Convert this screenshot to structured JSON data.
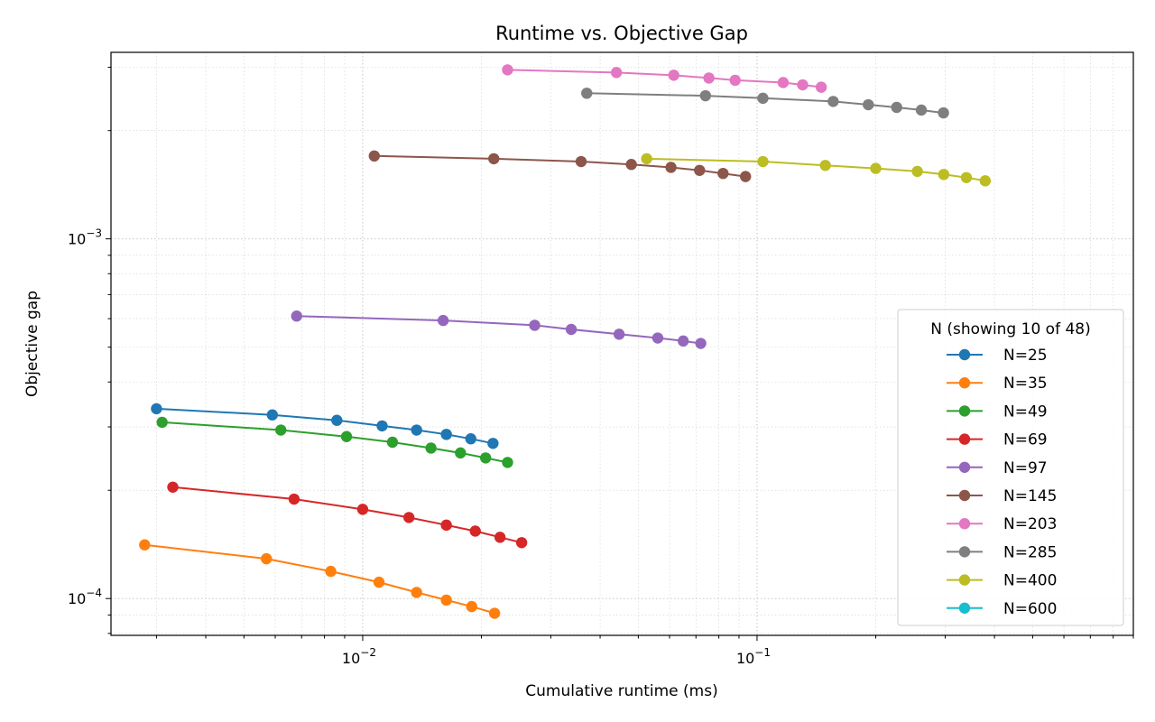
{
  "chart_data": {
    "type": "line",
    "title": "Runtime vs. Objective Gap",
    "xlabel": "Cumulative runtime (ms)",
    "ylabel": "Objective gap",
    "xscale": "log",
    "yscale": "log",
    "xlim": [
      0.0023,
      0.9
    ],
    "ylim": [
      7.9e-05,
      0.0033
    ],
    "x_tick_labels": [
      "10^-2",
      "10^-1"
    ],
    "y_tick_labels": [
      "10^-4",
      "10^-3"
    ],
    "grid": "both (major and minor), dotted",
    "legend": {
      "title": "N (showing 10 of 48)",
      "placement": "lower-right",
      "entries": [
        "N=25",
        "N=35",
        "N=49",
        "N=69",
        "N=97",
        "N=145",
        "N=203",
        "N=285",
        "N=400",
        "N=600"
      ]
    },
    "series": [
      {
        "name": "N=25",
        "color": "#1f77b4",
        "x": [
          0.003,
          0.0059,
          0.0086,
          0.0112,
          0.0137,
          0.0163,
          0.0188,
          0.0214
        ],
        "y": [
          0.000337,
          0.000324,
          0.000313,
          0.000302,
          0.000294,
          0.000286,
          0.000278,
          0.00027
        ]
      },
      {
        "name": "N=35",
        "color": "#ff7f0e",
        "x": [
          0.0028,
          0.0057,
          0.0083,
          0.011,
          0.0137,
          0.0163,
          0.0189,
          0.0216
        ],
        "y": [
          0.000141,
          0.000129,
          0.000119,
          0.000111,
          0.000104,
          9.9e-05,
          9.5e-05,
          9.1e-05
        ]
      },
      {
        "name": "N=49",
        "color": "#2ca02c",
        "x": [
          0.0031,
          0.0062,
          0.0091,
          0.0119,
          0.0149,
          0.0177,
          0.0205,
          0.0233
        ],
        "y": [
          0.000309,
          0.000294,
          0.000282,
          0.000272,
          0.000262,
          0.000254,
          0.000246,
          0.000239
        ]
      },
      {
        "name": "N=69",
        "color": "#d62728",
        "x": [
          0.0033,
          0.0067,
          0.01,
          0.0131,
          0.0163,
          0.0193,
          0.0223,
          0.0253
        ],
        "y": [
          0.000204,
          0.000189,
          0.000177,
          0.000168,
          0.00016,
          0.000154,
          0.000148,
          0.000143
        ]
      },
      {
        "name": "N=97",
        "color": "#9467bd",
        "x": [
          0.0068,
          0.016,
          0.0273,
          0.0338,
          0.0447,
          0.056,
          0.065,
          0.072
        ],
        "y": [
          0.00061,
          0.000593,
          0.000575,
          0.00056,
          0.000543,
          0.00053,
          0.00052,
          0.000512
        ]
      },
      {
        "name": "N=145",
        "color": "#8c564b",
        "x": [
          0.0107,
          0.0215,
          0.0358,
          0.048,
          0.0605,
          0.0715,
          0.082,
          0.0935
        ],
        "y": [
          0.0017,
          0.00167,
          0.00164,
          0.00161,
          0.00158,
          0.00155,
          0.00152,
          0.00149
        ]
      },
      {
        "name": "N=203",
        "color": "#e377c2",
        "x": [
          0.0233,
          0.044,
          0.0615,
          0.0755,
          0.088,
          0.1165,
          0.1305,
          0.1455
        ],
        "y": [
          0.00295,
          0.0029,
          0.00285,
          0.0028,
          0.00276,
          0.00272,
          0.00268,
          0.00264
        ]
      },
      {
        "name": "N=285",
        "color": "#7f7f7f",
        "x": [
          0.037,
          0.074,
          0.1035,
          0.156,
          0.1915,
          0.226,
          0.261,
          0.297
        ],
        "y": [
          0.00254,
          0.0025,
          0.00246,
          0.00241,
          0.00236,
          0.00232,
          0.00228,
          0.00224
        ]
      },
      {
        "name": "N=400",
        "color": "#bcbd22",
        "x": [
          0.0525,
          0.1035,
          0.149,
          0.2,
          0.255,
          0.2975,
          0.3395,
          0.379
        ],
        "y": [
          0.00167,
          0.00164,
          0.0016,
          0.00157,
          0.00154,
          0.00151,
          0.00148,
          0.00145
        ]
      },
      {
        "name": "N=600",
        "color": "#17becf",
        "x": [],
        "y": []
      }
    ]
  }
}
